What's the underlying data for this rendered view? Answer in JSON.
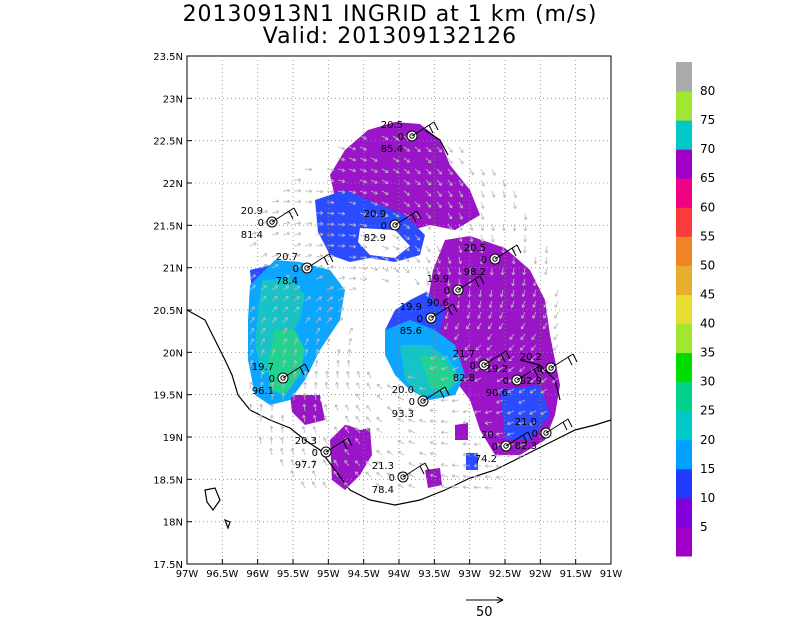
{
  "title_line1": "20130913N1 INGRID at 1 km (m/s)",
  "title_line2": "Valid: 201309132126",
  "lat_labels": [
    "23.5N",
    "23N",
    "22.5N",
    "22N",
    "21.5N",
    "21N",
    "20.5N",
    "20N",
    "19.5N",
    "19N",
    "18.5N",
    "18N",
    "17.5N"
  ],
  "lon_labels": [
    "97W",
    "96.5W",
    "96W",
    "95.5W",
    "95W",
    "94.5W",
    "94W",
    "93.5W",
    "93W",
    "92.5W",
    "92W",
    "91.5W",
    "91W"
  ],
  "colorbar": {
    "labels": [
      "5",
      "10",
      "15",
      "20",
      "25",
      "30",
      "35",
      "40",
      "45",
      "50",
      "55",
      "60",
      "65",
      "70",
      "75",
      "80"
    ],
    "colors": [
      "#a000c8",
      "#8200dc",
      "#1e3cff",
      "#00a0ff",
      "#00c8c8",
      "#00d28c",
      "#00dc00",
      "#a0e632",
      "#e6dc32",
      "#e6af2d",
      "#f08228",
      "#fa3c3c",
      "#f00082",
      "#a000c8",
      "#00c8c8",
      "#a0e632",
      "#aaaaaa"
    ]
  },
  "reference_vector_label": "50",
  "stations": [
    {
      "top": "20.9",
      "bottom": "81.4",
      "mid": "0"
    },
    {
      "top": "20.7",
      "bottom": "78.4",
      "mid": "0"
    },
    {
      "top": "20.9",
      "bottom": "82.9",
      "mid": "0"
    },
    {
      "top": "20.5",
      "bottom": "85.4",
      "mid": "0"
    },
    {
      "top": "20.5",
      "bottom": "98.2",
      "mid": "0"
    },
    {
      "top": "19.9",
      "bottom": "90.6",
      "mid": "0"
    },
    {
      "top": "19.9",
      "bottom": "85.6",
      "mid": "0"
    },
    {
      "top": "19.7",
      "bottom": "96.1",
      "mid": "0"
    },
    {
      "top": "21.7",
      "bottom": "82.8",
      "mid": "0"
    },
    {
      "top": "19.2",
      "bottom": "90.6",
      "mid": "0"
    },
    {
      "top": "20.2",
      "bottom": "82.9",
      "mid": "0"
    },
    {
      "top": "20.0",
      "bottom": "93.3",
      "mid": "0"
    },
    {
      "top": "21.0",
      "bottom": "82.3",
      "mid": "0"
    },
    {
      "top": "20.3",
      "bottom": "97.7",
      "mid": "0"
    },
    {
      "top": "20.",
      "bottom": "74.2",
      "mid": "0"
    },
    {
      "top": "21.3",
      "bottom": "78.4",
      "mid": "0"
    }
  ]
}
